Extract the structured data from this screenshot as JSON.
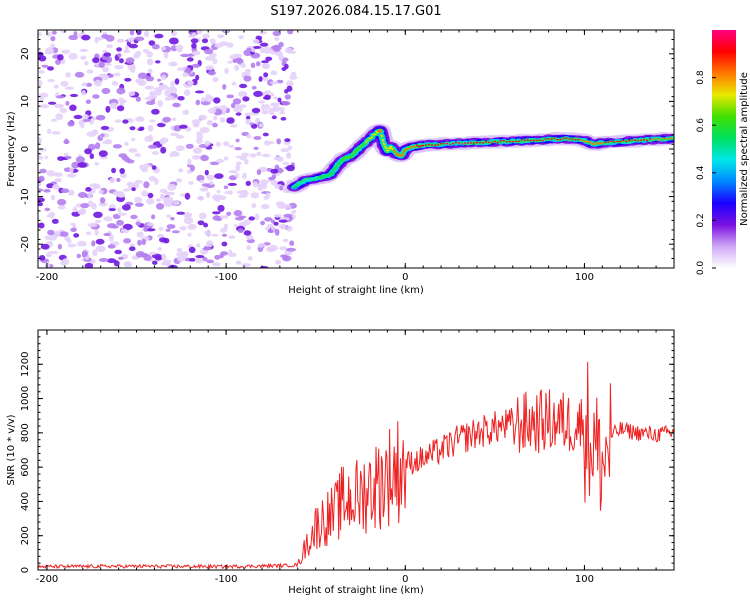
{
  "title": "S197.2026.084.15.17.G01",
  "chart_data": [
    {
      "type": "heatmap",
      "panel": "spectrogram",
      "xlabel": "Height of straight line (km)",
      "ylabel": "Frequency (Hz)",
      "xlim": [
        -205,
        150
      ],
      "ylim": [
        -25,
        25
      ],
      "xticks": [
        -200,
        -100,
        0,
        100
      ],
      "xtick_labels": [
        "-200",
        "-100",
        "0",
        "100"
      ],
      "yticks": [
        -20,
        -10,
        0,
        10,
        20
      ],
      "ytick_labels": [
        "-20",
        "-10",
        "0",
        "10",
        "20"
      ],
      "noise_region_x": [
        -205,
        -62
      ],
      "signal_track": {
        "x": [
          -62,
          -55,
          -48,
          -42,
          -38,
          -34,
          -30,
          -26,
          -20,
          -16,
          -14,
          -12,
          -10,
          -8,
          -5,
          -2,
          0,
          5,
          10,
          20,
          30,
          40,
          50,
          60,
          70,
          80,
          90,
          100,
          105,
          110,
          120,
          130,
          140,
          150
        ],
        "freq": [
          -8,
          -6.5,
          -6,
          -5.5,
          -3.5,
          -2,
          -1.5,
          0,
          2,
          3.5,
          4,
          1,
          -0.5,
          0.5,
          -1,
          -1.5,
          0,
          0.5,
          0.8,
          1,
          1.2,
          1.3,
          1.5,
          1.6,
          1.8,
          2,
          2.2,
          1.8,
          1,
          1.3,
          1.5,
          1.8,
          2,
          2.2
        ],
        "amplitude": [
          0.4,
          0.45,
          0.5,
          0.55,
          0.55,
          0.6,
          0.6,
          0.65,
          0.7,
          0.75,
          0.8,
          0.7,
          0.7,
          0.75,
          0.8,
          0.8,
          0.85,
          0.85,
          0.9,
          0.95,
          1.0,
          0.9,
          0.9,
          0.95,
          0.95,
          0.95,
          0.9,
          0.85,
          0.8,
          0.85,
          0.95,
          0.9,
          0.85,
          0.85
        ]
      },
      "colorbar": {
        "label": "Normalized spectral amplitude",
        "range": [
          0,
          1
        ],
        "ticks": [
          0,
          0.2,
          0.4,
          0.6,
          0.8
        ],
        "tick_labels": [
          "0.0",
          "0.2",
          "0.4",
          "0.6",
          "0.8"
        ],
        "colors": [
          "#ffffff",
          "#cfa8f5",
          "#7a10e0",
          "#1a00ff",
          "#0088ff",
          "#00e8e8",
          "#00e060",
          "#40e000",
          "#e8e800",
          "#ff7800",
          "#ff0000",
          "#ff0080"
        ]
      }
    },
    {
      "type": "line",
      "panel": "snr",
      "xlabel": "Height of straight line (km)",
      "ylabel": "SNR (10 * v/v)",
      "xlim": [
        -205,
        150
      ],
      "ylim": [
        0,
        1400
      ],
      "xticks": [
        -200,
        -100,
        0,
        100
      ],
      "xtick_labels": [
        "-200",
        "-100",
        "0",
        "100"
      ],
      "yticks": [
        0,
        200,
        400,
        600,
        800,
        1000,
        1200
      ],
      "ytick_labels": [
        "0",
        "200",
        "400",
        "600",
        "800",
        "1000",
        "1200"
      ],
      "color": "#ee2222",
      "x": [
        -205,
        -150,
        -100,
        -70,
        -60,
        -55,
        -50,
        -45,
        -40,
        -35,
        -30,
        -25,
        -20,
        -15,
        -10,
        -5,
        0,
        10,
        20,
        30,
        40,
        50,
        60,
        70,
        80,
        90,
        100,
        105,
        110,
        115,
        120,
        130,
        140,
        150
      ],
      "y": [
        20,
        22,
        20,
        25,
        30,
        150,
        250,
        300,
        320,
        400,
        420,
        430,
        480,
        500,
        550,
        580,
        620,
        650,
        700,
        760,
        800,
        830,
        850,
        860,
        870,
        860,
        850,
        750,
        600,
        780,
        820,
        800,
        790,
        800
      ]
    }
  ]
}
